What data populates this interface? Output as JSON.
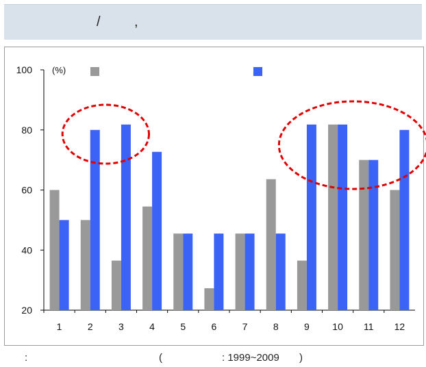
{
  "header": {
    "slash": "/",
    "comma": ","
  },
  "footer": {
    "colon": ":",
    "open_paren": "(",
    "period": ": 1999~2009",
    "close_paren": ")"
  },
  "colors": {
    "series_gray": "#999999",
    "series_blue": "#3b63f5",
    "highlight": "#e00000"
  },
  "chart_data": {
    "type": "bar",
    "unit_label": "(%)",
    "categories": [
      "1",
      "2",
      "3",
      "4",
      "5",
      "6",
      "7",
      "8",
      "9",
      "10",
      "11",
      "12"
    ],
    "series": [
      {
        "color": "#999999",
        "values": [
          60,
          50,
          36.5,
          54.5,
          45.5,
          27.3,
          45.5,
          63.6,
          36.5,
          81.8,
          70,
          60
        ]
      },
      {
        "color": "#3b63f5",
        "values": [
          50,
          80,
          81.8,
          72.7,
          45.5,
          45.5,
          45.5,
          45.5,
          81.8,
          81.8,
          70,
          80
        ]
      }
    ],
    "ylim": [
      20,
      100
    ],
    "yticks": [
      20,
      40,
      60,
      80,
      100
    ],
    "legend": "top",
    "grid": false,
    "highlight_groups": [
      [
        "2",
        "3"
      ],
      [
        "9",
        "10",
        "11",
        "12"
      ]
    ]
  }
}
